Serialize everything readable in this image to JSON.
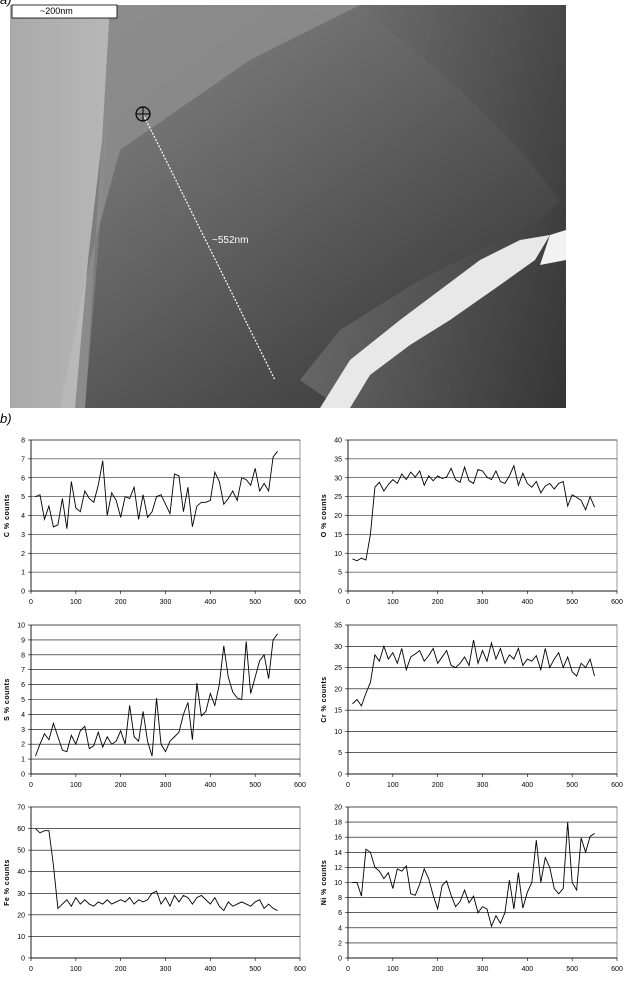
{
  "figure": {
    "panel_a_label": "a)",
    "panel_b_label": "b)",
    "scale_bar": "~200nm",
    "line_length": "~552nm"
  },
  "chart_data": [
    {
      "type": "line",
      "ylabel": "C % counts",
      "color": "#000000",
      "xlim": [
        0,
        600
      ],
      "xticks": [
        0,
        100,
        200,
        300,
        400,
        500,
        600
      ],
      "ylim": [
        0,
        8
      ],
      "yticks": [
        0,
        1,
        2,
        3,
        4,
        5,
        6,
        7,
        8
      ],
      "grid": true,
      "x": [
        10,
        20,
        30,
        40,
        50,
        60,
        70,
        80,
        90,
        100,
        110,
        120,
        130,
        140,
        150,
        160,
        170,
        180,
        190,
        200,
        210,
        220,
        230,
        240,
        250,
        260,
        270,
        280,
        290,
        300,
        310,
        320,
        330,
        340,
        350,
        360,
        370,
        380,
        390,
        400,
        410,
        420,
        430,
        440,
        450,
        460,
        470,
        480,
        490,
        500,
        510,
        520,
        530,
        540,
        550
      ],
      "values": [
        5.0,
        5.1,
        3.8,
        4.5,
        3.4,
        3.5,
        4.9,
        3.3,
        5.8,
        4.4,
        4.2,
        5.3,
        4.9,
        4.7,
        5.6,
        6.9,
        4.0,
        5.2,
        4.8,
        3.9,
        5.0,
        4.9,
        5.5,
        3.8,
        5.1,
        3.9,
        4.2,
        5.0,
        5.1,
        4.6,
        4.1,
        6.2,
        6.1,
        4.2,
        5.5,
        3.4,
        4.5,
        4.7,
        4.7,
        4.8,
        6.3,
        5.8,
        4.6,
        4.9,
        5.3,
        4.8,
        6.0,
        5.9,
        5.6,
        6.5,
        5.3,
        5.7,
        5.3,
        7.1,
        7.4
      ]
    },
    {
      "type": "line",
      "ylabel": "O % counts",
      "color": "#000000",
      "xlim": [
        0,
        600
      ],
      "xticks": [
        0,
        100,
        200,
        300,
        400,
        500,
        600
      ],
      "ylim": [
        0,
        40
      ],
      "yticks": [
        0,
        5,
        10,
        15,
        20,
        25,
        30,
        35,
        40
      ],
      "grid": true,
      "x": [
        10,
        20,
        30,
        40,
        50,
        60,
        70,
        80,
        90,
        100,
        110,
        120,
        130,
        140,
        150,
        160,
        170,
        180,
        190,
        200,
        210,
        220,
        230,
        240,
        250,
        260,
        270,
        280,
        290,
        300,
        310,
        320,
        330,
        340,
        350,
        360,
        370,
        380,
        390,
        400,
        410,
        420,
        430,
        440,
        450,
        460,
        470,
        480,
        490,
        500,
        510,
        520,
        530,
        540,
        550
      ],
      "values": [
        8.5,
        8.0,
        8.7,
        8.2,
        15.0,
        27.5,
        28.8,
        26.5,
        28.2,
        29.5,
        28.5,
        31.0,
        29.5,
        31.5,
        30.2,
        31.8,
        28.0,
        30.5,
        29.2,
        30.5,
        29.8,
        30.2,
        32.5,
        29.5,
        28.8,
        32.8,
        29.2,
        28.5,
        32.2,
        31.8,
        30.2,
        29.5,
        31.8,
        29.0,
        28.5,
        30.5,
        33.2,
        28.0,
        31.2,
        28.5,
        27.5,
        29.0,
        26.0,
        27.8,
        28.5,
        27.0,
        28.5,
        29.0,
        22.5,
        25.5,
        24.8,
        24.0,
        21.5,
        25.0,
        22.2
      ]
    },
    {
      "type": "line",
      "ylabel": "S % counts",
      "color": "#000000",
      "xlim": [
        0,
        600
      ],
      "xticks": [
        0,
        100,
        200,
        300,
        400,
        500,
        600
      ],
      "ylim": [
        0,
        10
      ],
      "yticks": [
        0,
        1,
        2,
        3,
        4,
        5,
        6,
        7,
        8,
        9,
        10
      ],
      "grid": true,
      "x": [
        10,
        20,
        30,
        40,
        50,
        60,
        70,
        80,
        90,
        100,
        110,
        120,
        130,
        140,
        150,
        160,
        170,
        180,
        190,
        200,
        210,
        220,
        230,
        240,
        250,
        260,
        270,
        280,
        290,
        300,
        310,
        320,
        330,
        340,
        350,
        360,
        370,
        380,
        390,
        400,
        410,
        420,
        430,
        440,
        450,
        460,
        470,
        480,
        490,
        500,
        510,
        520,
        530,
        540,
        550
      ],
      "values": [
        1.2,
        2.0,
        2.7,
        2.3,
        3.4,
        2.5,
        1.6,
        1.5,
        2.6,
        2.0,
        2.9,
        3.2,
        1.7,
        1.9,
        2.8,
        1.8,
        2.5,
        2.0,
        2.2,
        2.9,
        2.0,
        4.6,
        2.5,
        2.2,
        4.2,
        2.2,
        1.2,
        5.1,
        2.0,
        1.5,
        2.2,
        2.5,
        2.8,
        4.0,
        4.8,
        2.3,
        6.1,
        3.9,
        4.2,
        5.4,
        4.6,
        6.0,
        8.6,
        6.5,
        5.5,
        5.1,
        5.0,
        8.9,
        5.4,
        6.5,
        7.6,
        8.0,
        6.4,
        9.0,
        9.4
      ]
    },
    {
      "type": "line",
      "ylabel": "Cr % counts",
      "color": "#000000",
      "xlim": [
        0,
        600
      ],
      "xticks": [
        0,
        100,
        200,
        300,
        400,
        500,
        600
      ],
      "ylim": [
        0,
        35
      ],
      "yticks": [
        0,
        5,
        10,
        15,
        20,
        25,
        30,
        35
      ],
      "grid": true,
      "x": [
        10,
        20,
        30,
        40,
        50,
        60,
        70,
        80,
        90,
        100,
        110,
        120,
        130,
        140,
        150,
        160,
        170,
        180,
        190,
        200,
        210,
        220,
        230,
        240,
        250,
        260,
        270,
        280,
        290,
        300,
        310,
        320,
        330,
        340,
        350,
        360,
        370,
        380,
        390,
        400,
        410,
        420,
        430,
        440,
        450,
        460,
        470,
        480,
        490,
        500,
        510,
        520,
        530,
        540,
        550
      ],
      "values": [
        16.5,
        17.5,
        16.0,
        19.0,
        21.5,
        28.0,
        26.5,
        30.0,
        27.0,
        28.5,
        26.0,
        29.5,
        24.5,
        27.5,
        28.2,
        29.0,
        26.5,
        27.8,
        29.5,
        26.0,
        27.5,
        29.0,
        25.5,
        25.0,
        26.0,
        27.5,
        25.5,
        31.5,
        26.0,
        29.0,
        26.5,
        30.8,
        27.0,
        29.5,
        26.0,
        28.0,
        27.0,
        29.5,
        25.5,
        27.0,
        26.5,
        27.8,
        24.5,
        29.5,
        25.0,
        27.0,
        28.5,
        25.0,
        27.5,
        24.0,
        23.0,
        26.0,
        25.0,
        27.0,
        23.0
      ]
    },
    {
      "type": "line",
      "ylabel": "Fe % counts",
      "color": "#000000",
      "xlim": [
        0,
        600
      ],
      "xticks": [
        0,
        100,
        200,
        300,
        400,
        500,
        600
      ],
      "ylim": [
        0,
        70
      ],
      "yticks": [
        0,
        10,
        20,
        30,
        40,
        50,
        60,
        70
      ],
      "grid": true,
      "x": [
        10,
        20,
        30,
        40,
        50,
        60,
        70,
        80,
        90,
        100,
        110,
        120,
        130,
        140,
        150,
        160,
        170,
        180,
        190,
        200,
        210,
        220,
        230,
        240,
        250,
        260,
        270,
        280,
        290,
        300,
        310,
        320,
        330,
        340,
        350,
        360,
        370,
        380,
        390,
        400,
        410,
        420,
        430,
        440,
        450,
        460,
        470,
        480,
        490,
        500,
        510,
        520,
        530,
        540,
        550
      ],
      "values": [
        60,
        58,
        59,
        59,
        43,
        23,
        25,
        27,
        24,
        28,
        25,
        27,
        25,
        24,
        26,
        25,
        27,
        25,
        26,
        27,
        26,
        28,
        25,
        27,
        26,
        27,
        30,
        31,
        25,
        28,
        24,
        29,
        26,
        29,
        28,
        25,
        28,
        29,
        27,
        25,
        28,
        24,
        22,
        26,
        24,
        25,
        26,
        25,
        24,
        26,
        27,
        23,
        25,
        23,
        22
      ]
    },
    {
      "type": "line",
      "ylabel": "Ni % counts",
      "color": "#000000",
      "xlim": [
        0,
        600
      ],
      "xticks": [
        0,
        100,
        200,
        300,
        400,
        500,
        600
      ],
      "ylim": [
        0,
        20
      ],
      "yticks": [
        0,
        2,
        4,
        6,
        8,
        10,
        12,
        14,
        16,
        18,
        20
      ],
      "grid": true,
      "x": [
        10,
        20,
        30,
        40,
        50,
        60,
        70,
        80,
        90,
        100,
        110,
        120,
        130,
        140,
        150,
        160,
        170,
        180,
        190,
        200,
        210,
        220,
        230,
        240,
        250,
        260,
        270,
        280,
        290,
        300,
        310,
        320,
        330,
        340,
        350,
        360,
        370,
        380,
        390,
        400,
        410,
        420,
        430,
        440,
        450,
        460,
        470,
        480,
        490,
        500,
        510,
        520,
        530,
        540,
        550
      ],
      "values": [
        10.0,
        10.0,
        8.2,
        14.4,
        14.0,
        12.0,
        11.5,
        10.5,
        11.3,
        9.2,
        11.8,
        11.5,
        12.2,
        8.5,
        8.3,
        9.8,
        11.8,
        10.5,
        8.3,
        6.5,
        9.6,
        10.2,
        8.3,
        6.8,
        7.5,
        9.0,
        7.3,
        8.2,
        6.0,
        6.8,
        6.5,
        4.2,
        5.6,
        4.6,
        6.0,
        10.3,
        6.5,
        11.3,
        6.6,
        8.7,
        10.0,
        15.6,
        10.0,
        13.3,
        12.0,
        9.2,
        8.5,
        9.2,
        18.0,
        10.0,
        9.0,
        15.9,
        14.0,
        16.1,
        16.5
      ]
    }
  ]
}
